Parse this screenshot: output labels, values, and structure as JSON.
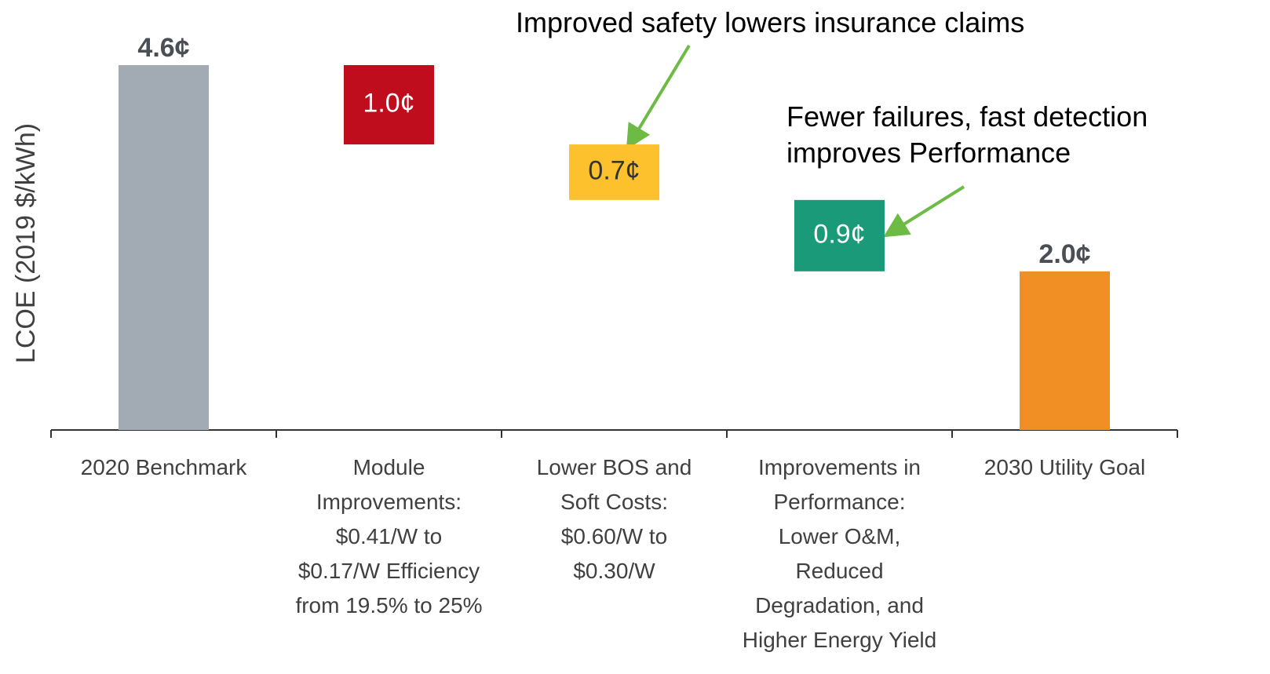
{
  "chart_data": {
    "type": "waterfall",
    "y_label": "LCOE (2019 $/kWh)",
    "categories": [
      "2020 Benchmark",
      "Module\nImprovements:\n$0.41/W to\n$0.17/W Efficiency\nfrom 19.5% to 25%",
      "Lower BOS and\nSoft Costs:\n$0.60/W to\n$0.30/W",
      "Improvements in\nPerformance:\nLower O&M,\nReduced\nDegradation, and\nHigher Energy Yield",
      "2030 Utility Goal"
    ],
    "values": [
      4.6,
      1.0,
      0.7,
      0.9,
      2.0
    ],
    "value_labels": [
      "4.6¢",
      "1.0¢",
      "0.7¢",
      "0.9¢",
      "2.0¢"
    ],
    "colors": [
      "#a2abb3",
      "#c00d1e",
      "#fcc12d",
      "#1a9a78",
      "#f18f25"
    ],
    "annotations": [
      "Improved safety lowers insurance claims",
      "Fewer failures, fast detection\nimproves Performance"
    ]
  }
}
